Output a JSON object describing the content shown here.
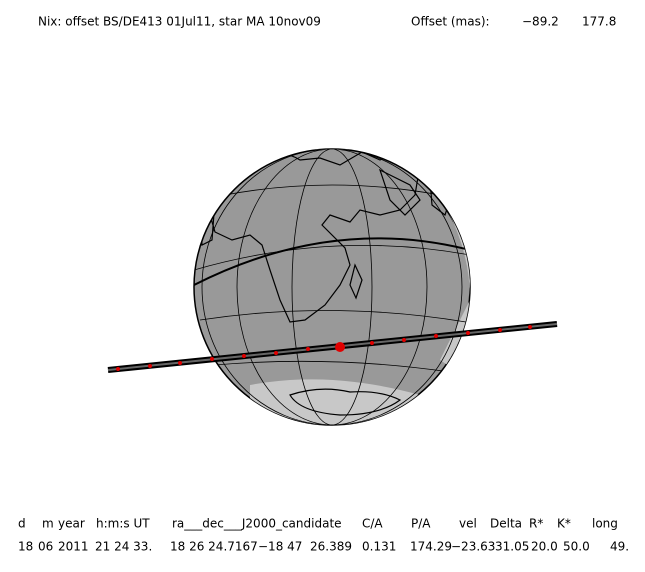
{
  "title": "Nix: offset BS/DE413 01Jul11, star MA 10nov09",
  "offset": {
    "label": "Offset (mas):",
    "values": [
      "−89.2",
      "177.8"
    ]
  },
  "table": {
    "header": [
      "d",
      "m",
      "year",
      "h:m:s UT",
      "ra___dec___J2000_candidate",
      "C/A",
      "P/A",
      "vel",
      "Delta",
      "R*",
      "K*",
      "long"
    ],
    "row": [
      "18",
      "06",
      "2011",
      "21 24 33.",
      "18 26 24.7167",
      "−18 47  26.389",
      "0.131",
      "174.29",
      "−23.63",
      "31.05",
      "20.0",
      "50.0",
      "49."
    ]
  }
}
